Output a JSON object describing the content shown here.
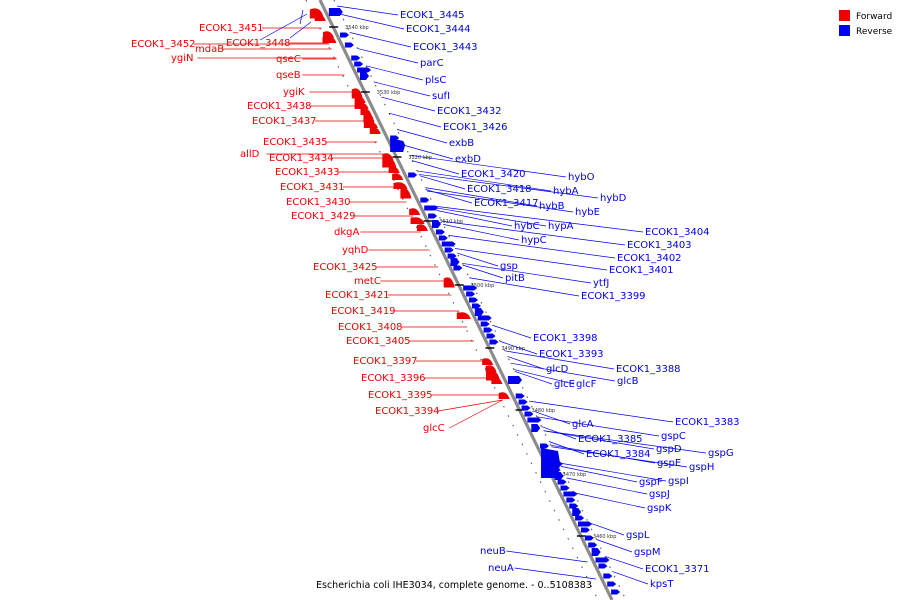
{
  "caption": "Escherichia coli IHE3034, complete genome. - 0..5108383",
  "legend": {
    "forward": {
      "label": "Forward",
      "color": "#ee0000"
    },
    "reverse": {
      "label": "Reverse",
      "color": "#0000ee"
    }
  },
  "ticks": [
    "3540 kbp",
    "3530 kbp",
    "3520 kbp",
    "3510 kbp",
    "3500 kbp",
    "3490 kbp",
    "3480 kbp",
    "3470 kbp",
    "3460 kbp"
  ],
  "forward_labels": [
    "ECOK1_3451",
    "ECOK1_3452",
    "mdaB",
    "ygiN",
    "ECOK1_3448",
    "qseC",
    "qseB",
    "ygiK",
    "ECOK1_3438",
    "ECOK1_3437",
    "ECOK1_3435",
    "allD",
    "ECOK1_3434",
    "ECOK1_3433",
    "ECOK1_3431",
    "ECOK1_3430",
    "ECOK1_3429",
    "dkgA",
    "yqhD",
    "ECOK1_3425",
    "metC",
    "ECOK1_3421",
    "ECOK1_3419",
    "ECOK1_3408",
    "ECOK1_3405",
    "ECOK1_3397",
    "ECOK1_3396",
    "ECOK1_3395",
    "ECOK1_3394",
    "glcC"
  ],
  "reverse_labels": [
    "ECOK1_3445",
    "ECOK1_3444",
    "ECOK1_3443",
    "parC",
    "plsC",
    "sufI",
    "ECOK1_3432",
    "ECOK1_3426",
    "exbB",
    "exbD",
    "ECOK1_3420",
    "ECOK1_3418",
    "ECOK1_3417",
    "hybO",
    "hybA",
    "hybB",
    "hybD",
    "hybE",
    "hybC",
    "hypA",
    "hypC",
    "ECOK1_3404",
    "ECOK1_3403",
    "ECOK1_3402",
    "ECOK1_3401",
    "gsp",
    "pitB",
    "ytfJ",
    "ECOK1_3399",
    "ECOK1_3398",
    "ECOK1_3393",
    "glcD",
    "glcE",
    "glcF",
    "glcB",
    "ECOK1_3388",
    "glcA",
    "ECOK1_3385",
    "ECOK1_3384",
    "ECOK1_3383",
    "gspC",
    "gspD",
    "gspE",
    "gspF",
    "gspG",
    "gspH",
    "gspI",
    "gspJ",
    "gspK",
    "gspL",
    "gspM",
    "ECOK1_3371",
    "neuB",
    "neuA",
    "kpsT"
  ]
}
